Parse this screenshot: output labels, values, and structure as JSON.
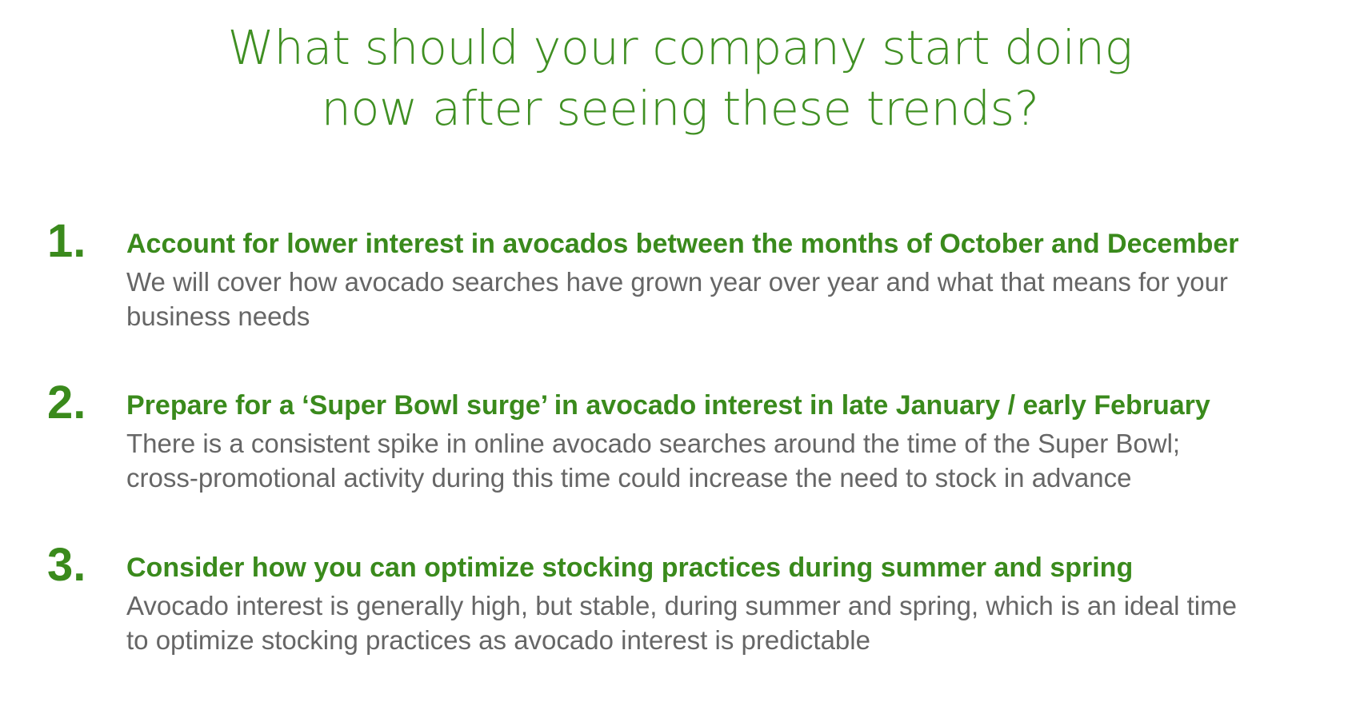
{
  "title": {
    "line1": "What should your company start doing",
    "line2": "now after seeing these trends?"
  },
  "items": [
    {
      "number": "1.",
      "heading": "Account for lower interest in avocados between the months of October and December",
      "desc_line1": "We will cover how avocado searches have grown year over year and what that means for your",
      "desc_line2": "business needs"
    },
    {
      "number": "2.",
      "heading": "Prepare for a ‘Super Bowl surge’ in avocado interest in late January / early February",
      "desc_line1": "There is a consistent spike in online avocado searches around the time of the Super Bowl;",
      "desc_line2": "cross-promotional activity during this time could increase the need to stock in advance"
    },
    {
      "number": "3.",
      "heading": "Consider how you can optimize stocking practices during summer and spring",
      "desc_line1": "Avocado interest is generally high, but stable, during summer and spring, which is an ideal time",
      "desc_line2": "to optimize stocking practices as avocado interest is predictable"
    }
  ],
  "colors": {
    "accent_green": "#3a8a1c",
    "body_gray": "#666666",
    "background": "#ffffff"
  }
}
